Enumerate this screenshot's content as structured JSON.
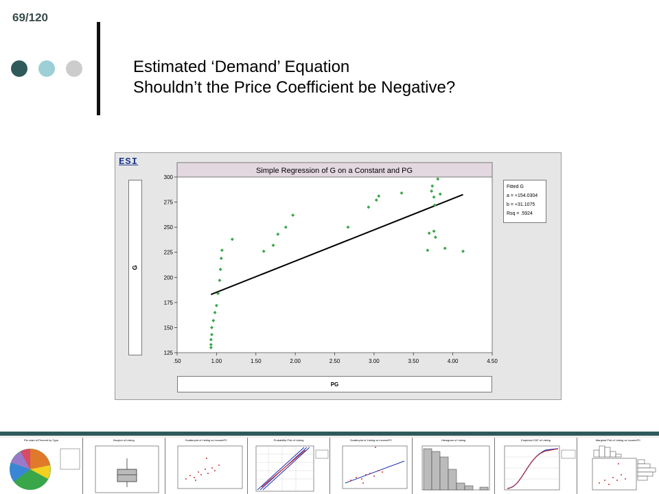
{
  "slide": {
    "page_number": "69/120",
    "title_line1": "Estimated ‘Demand’ Equation",
    "title_line2": "Shouldn’t the Price Coefficient be Negative?",
    "dots": [
      "#2e5a5a",
      "#9ccfd6",
      "#cccccc"
    ]
  },
  "window": {
    "logo": "ESI"
  },
  "chart_data": {
    "type": "scatter",
    "title": "Simple Regression of G on a Constant and PG",
    "xlabel": "PG",
    "ylabel": "G",
    "xlim": [
      0.5,
      4.5
    ],
    "ylim": [
      125,
      300
    ],
    "xticks": [
      ".50",
      "1.00",
      "1.50",
      "2.00",
      "2.50",
      "3.00",
      "3.50",
      "4.00",
      "4.50"
    ],
    "yticks": [
      "125",
      "150",
      "175",
      "200",
      "225",
      "250",
      "275",
      "300"
    ],
    "points": [
      [
        0.93,
        130
      ],
      [
        0.93,
        133
      ],
      [
        0.93,
        138
      ],
      [
        0.94,
        143
      ],
      [
        0.94,
        150
      ],
      [
        0.96,
        157
      ],
      [
        0.98,
        165
      ],
      [
        1.0,
        172
      ],
      [
        1.02,
        184
      ],
      [
        1.04,
        197
      ],
      [
        1.05,
        208
      ],
      [
        1.06,
        219
      ],
      [
        1.07,
        227
      ],
      [
        1.2,
        238
      ],
      [
        1.6,
        226
      ],
      [
        1.72,
        232
      ],
      [
        1.78,
        243
      ],
      [
        1.88,
        250
      ],
      [
        1.97,
        262
      ],
      [
        2.67,
        250
      ],
      [
        2.93,
        270
      ],
      [
        3.03,
        277
      ],
      [
        3.06,
        281
      ],
      [
        3.35,
        284
      ],
      [
        3.68,
        227
      ],
      [
        3.7,
        244
      ],
      [
        3.73,
        286
      ],
      [
        3.74,
        291
      ],
      [
        3.76,
        246
      ],
      [
        3.76,
        280
      ],
      [
        3.77,
        272
      ],
      [
        3.78,
        240
      ],
      [
        3.81,
        298
      ],
      [
        3.84,
        283
      ],
      [
        3.9,
        229
      ],
      [
        4.13,
        226
      ]
    ],
    "fit": {
      "intercept": 154.0304,
      "slope": 31.1075,
      "x_range": [
        0.93,
        4.13
      ]
    },
    "legend": {
      "title": "Fitted G",
      "a": "a = +154.0304",
      "b": "b = +31.1075",
      "rsq": "Rsq = .5924"
    },
    "colors": {
      "points": "#3aa64a",
      "fit_line": "#000000",
      "plot_bg": "#ffffff",
      "title_bg": "#e4d8e0"
    }
  },
  "thumbnails": [
    {
      "title": "Pie chart of Percent by Type",
      "kind": "pie"
    },
    {
      "title": "Boxplot of Listing",
      "kind": "box"
    },
    {
      "title": "Scatterplot of Listing vs IncomePC",
      "kind": "scatter"
    },
    {
      "title": "Probability Plot of Listing",
      "kind": "prob"
    },
    {
      "title": "Scatterplot of Listing vs IncomePC",
      "kind": "scatterline"
    },
    {
      "title": "Histogram of Listing",
      "kind": "hist"
    },
    {
      "title": "Empirical CDF of Listing",
      "kind": "cdf"
    },
    {
      "title": "Marginal Plot of Listing vs IncomePC",
      "kind": "marginal"
    }
  ]
}
